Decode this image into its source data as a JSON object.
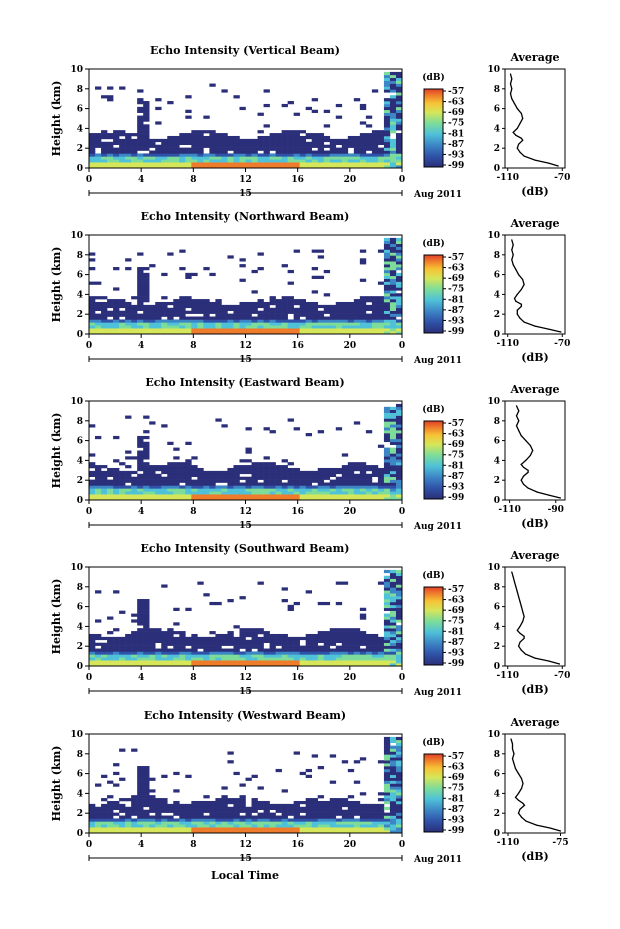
{
  "chart_data": [
    {
      "type": "heatmap",
      "title": "Echo Intensity (Vertical Beam)",
      "ylabel": "Height (km)",
      "xticks": [
        "0",
        "4",
        "8",
        "12",
        "16",
        "20",
        "0"
      ],
      "yticks": [
        "0",
        "2",
        "4",
        "6",
        "8",
        "10"
      ],
      "xlim": [
        0,
        24
      ],
      "ylim": [
        0,
        10
      ],
      "date_day": "15",
      "date_month_year": "Aug 2011",
      "colorbar": {
        "unit": "(dB)",
        "ticks": [
          "-57",
          "-63",
          "-69",
          "-75",
          "-81",
          "-87",
          "-93",
          "-99"
        ]
      },
      "average_profile": {
        "title": "Average",
        "xlabel": "(dB)",
        "xticks": [
          "-110",
          "-70"
        ],
        "xlim": [
          -112,
          -68
        ],
        "yticks": [
          "0",
          "2",
          "4",
          "6",
          "8",
          "10"
        ],
        "height_km": [
          0.2,
          0.5,
          0.8,
          1.2,
          1.6,
          2.0,
          2.4,
          2.8,
          3.0,
          3.3,
          3.6,
          4.0,
          4.5,
          5.0,
          5.5,
          6.0,
          6.5,
          7.0,
          7.5,
          8.0,
          8.5,
          9.0,
          9.5
        ],
        "db": [
          -73,
          -80,
          -90,
          -98,
          -101,
          -103,
          -102,
          -99,
          -100,
          -104,
          -106,
          -103,
          -101,
          -99,
          -100,
          -103,
          -105,
          -107,
          -108,
          -107,
          -108,
          -107,
          -108
        ]
      }
    },
    {
      "type": "heatmap",
      "title": "Echo Intensity (Northward Beam)",
      "ylabel": "Height (km)",
      "xticks": [
        "0",
        "4",
        "8",
        "12",
        "16",
        "20",
        "0"
      ],
      "yticks": [
        "0",
        "2",
        "4",
        "6",
        "8",
        "10"
      ],
      "xlim": [
        0,
        24
      ],
      "ylim": [
        0,
        10
      ],
      "date_day": "15",
      "date_month_year": "Aug 2011",
      "colorbar": {
        "unit": "(dB)",
        "ticks": [
          "-57",
          "-63",
          "-69",
          "-75",
          "-81",
          "-87",
          "-93",
          "-99"
        ]
      },
      "average_profile": {
        "title": "Average",
        "xlabel": "(dB)",
        "xticks": [
          "-110",
          "-70"
        ],
        "xlim": [
          -112,
          -68
        ],
        "yticks": [
          "0",
          "2",
          "4",
          "6",
          "8",
          "10"
        ],
        "height_km": [
          0.2,
          0.5,
          0.8,
          1.2,
          1.6,
          2.0,
          2.4,
          2.8,
          3.0,
          3.3,
          3.6,
          4.0,
          4.5,
          5.0,
          5.5,
          6.0,
          6.5,
          7.0,
          7.5,
          8.0,
          8.5,
          9.0,
          9.5
        ],
        "db": [
          -71,
          -80,
          -90,
          -98,
          -101,
          -103,
          -103,
          -100,
          -100,
          -104,
          -105,
          -103,
          -100,
          -98,
          -99,
          -102,
          -104,
          -106,
          -107,
          -106,
          -107,
          -106,
          -107
        ]
      }
    },
    {
      "type": "heatmap",
      "title": "Echo Intensity (Eastward Beam)",
      "ylabel": "Height (km)",
      "xticks": [
        "0",
        "4",
        "8",
        "12",
        "16",
        "20",
        "0"
      ],
      "yticks": [
        "0",
        "2",
        "4",
        "6",
        "8",
        "10"
      ],
      "xlim": [
        0,
        24
      ],
      "ylim": [
        0,
        10
      ],
      "date_day": "15",
      "date_month_year": "Aug 2011",
      "colorbar": {
        "unit": "(dB)",
        "ticks": [
          "-57",
          "-63",
          "-69",
          "-75",
          "-81",
          "-87",
          "-93",
          "-99"
        ]
      },
      "average_profile": {
        "title": "Average",
        "xlabel": "(dB)",
        "xticks": [
          "-110",
          "-90"
        ],
        "xlim": [
          -112,
          -86
        ],
        "yticks": [
          "0",
          "2",
          "4",
          "6",
          "8",
          "10"
        ],
        "height_km": [
          0.2,
          0.5,
          0.8,
          1.2,
          1.6,
          2.0,
          2.4,
          2.8,
          3.0,
          3.3,
          3.6,
          4.0,
          4.5,
          5.0,
          5.5,
          6.0,
          6.5,
          7.0,
          7.5,
          8.0,
          8.5,
          9.0,
          9.5
        ],
        "db": [
          -88,
          -93,
          -98,
          -102,
          -104,
          -105,
          -104,
          -102,
          -102,
          -104,
          -105,
          -103,
          -101,
          -100,
          -101,
          -103,
          -105,
          -106,
          -107,
          -106,
          -107,
          -106,
          -107
        ]
      }
    },
    {
      "type": "heatmap",
      "title": "Echo Intensity (Southward Beam)",
      "ylabel": "Height (km)",
      "xticks": [
        "0",
        "4",
        "8",
        "12",
        "16",
        "20",
        "0"
      ],
      "yticks": [
        "0",
        "2",
        "4",
        "6",
        "8",
        "10"
      ],
      "xlim": [
        0,
        24
      ],
      "ylim": [
        0,
        10
      ],
      "date_day": "15",
      "date_month_year": "Aug 2011",
      "colorbar": {
        "unit": "(dB)",
        "ticks": [
          "-57",
          "-63",
          "-69",
          "-75",
          "-81",
          "-87",
          "-93",
          "-99"
        ]
      },
      "average_profile": {
        "title": "Average",
        "xlabel": "(dB)",
        "xticks": [
          "-110",
          "-70"
        ],
        "xlim": [
          -112,
          -68
        ],
        "yticks": [
          "0",
          "2",
          "4",
          "6",
          "8",
          "10"
        ],
        "height_km": [
          0.2,
          0.5,
          0.8,
          1.2,
          1.6,
          2.0,
          2.4,
          2.8,
          3.0,
          3.3,
          3.6,
          4.0,
          4.5,
          5.0,
          5.5,
          6.0,
          6.5,
          7.0,
          7.5,
          8.0,
          8.5,
          9.0,
          9.5
        ],
        "db": [
          -72,
          -80,
          -90,
          -97,
          -100,
          -102,
          -101,
          -98,
          -98,
          -101,
          -103,
          -101,
          -99,
          -98,
          -99,
          -100,
          -101,
          -102,
          -103,
          -104,
          -105,
          -106,
          -107
        ]
      }
    },
    {
      "type": "heatmap",
      "title": "Echo Intensity (Westward Beam)",
      "ylabel": "Height (km)",
      "xlabel": "Local Time",
      "xticks": [
        "0",
        "4",
        "8",
        "12",
        "16",
        "20",
        "0"
      ],
      "yticks": [
        "0",
        "2",
        "4",
        "6",
        "8",
        "10"
      ],
      "xlim": [
        0,
        24
      ],
      "ylim": [
        0,
        10
      ],
      "date_day": "15",
      "date_month_year": "Aug 2011",
      "colorbar": {
        "unit": "(dB)",
        "ticks": [
          "-57",
          "-63",
          "-69",
          "-75",
          "-81",
          "-87",
          "-93",
          "-99"
        ]
      },
      "average_profile": {
        "title": "Average",
        "xlabel": "(dB)",
        "xticks": [
          "-110",
          "-75"
        ],
        "xlim": [
          -112,
          -72
        ],
        "yticks": [
          "0",
          "2",
          "4",
          "6",
          "8",
          "10"
        ],
        "height_km": [
          0.2,
          0.5,
          0.8,
          1.2,
          1.6,
          2.0,
          2.4,
          2.8,
          3.0,
          3.3,
          3.6,
          4.0,
          4.5,
          5.0,
          5.5,
          6.0,
          6.5,
          7.0,
          7.5,
          8.0,
          8.5,
          9.0,
          9.5
        ],
        "db": [
          -75,
          -82,
          -91,
          -98,
          -101,
          -103,
          -102,
          -99,
          -100,
          -103,
          -105,
          -103,
          -101,
          -100,
          -101,
          -103,
          -105,
          -106,
          -107,
          -106,
          -107,
          -107,
          -108
        ]
      }
    }
  ],
  "colors": {
    "colormap": [
      "#2b2f7a",
      "#2f52a8",
      "#3d86c6",
      "#4fc1d8",
      "#7ddc9a",
      "#d6e659",
      "#f6c335",
      "#ef7b2a",
      "#e0402a"
    ],
    "outline": "#000000"
  }
}
